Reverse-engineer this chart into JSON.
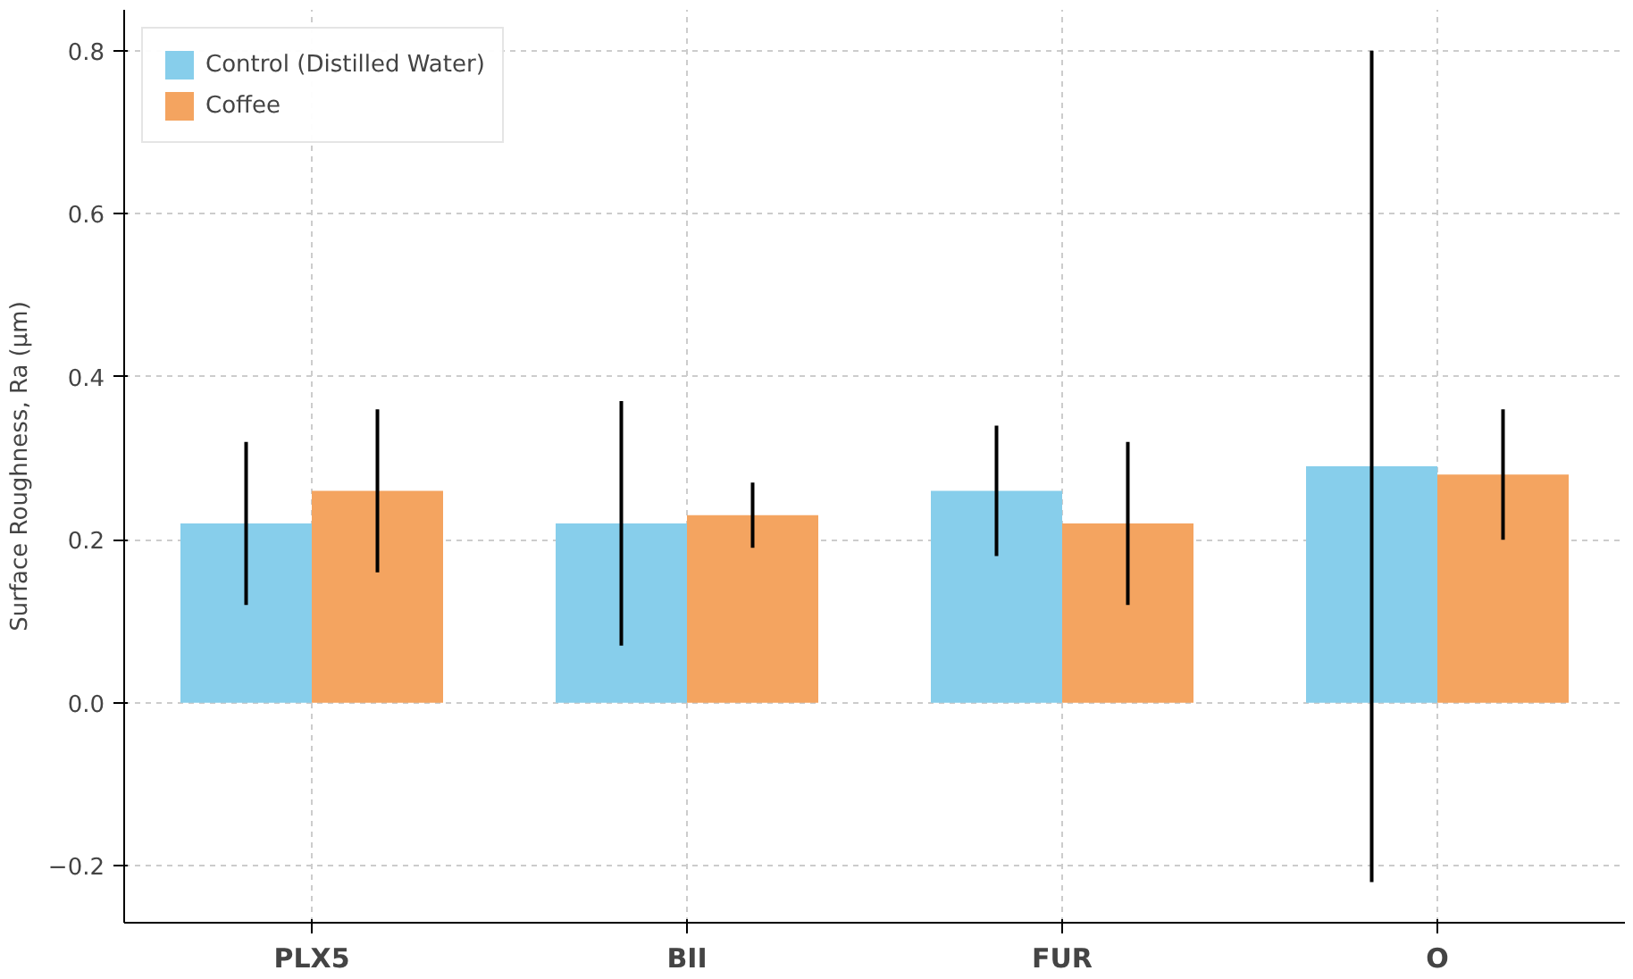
{
  "chart_data": {
    "type": "bar",
    "ylabel": "Surface Roughness, Ra (µm)",
    "categories": [
      "PLX5",
      "BII",
      "FUR",
      "O"
    ],
    "series": [
      {
        "name": "Control (Distilled Water)",
        "color": "#87ceeb",
        "values": [
          0.22,
          0.22,
          0.26,
          0.29
        ],
        "errors": [
          0.1,
          0.15,
          0.08,
          0.51
        ]
      },
      {
        "name": "Coffee",
        "color": "#f4a460",
        "values": [
          0.26,
          0.23,
          0.22,
          0.28
        ],
        "errors": [
          0.1,
          0.04,
          0.1,
          0.08
        ]
      }
    ],
    "ylim": [
      -0.27,
      0.85
    ],
    "yticks": [
      {
        "value": -0.2,
        "label": "−0.2"
      },
      {
        "value": 0,
        "label": "0.0"
      },
      {
        "value": 0.2,
        "label": "0.2"
      },
      {
        "value": 0.4,
        "label": "0.4"
      },
      {
        "value": 0.6,
        "label": "0.6"
      },
      {
        "value": 0.8,
        "label": "0.8"
      }
    ],
    "grid": true,
    "legend": "top left"
  }
}
